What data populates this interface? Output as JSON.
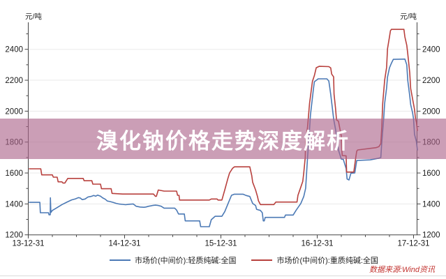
{
  "title_banner": {
    "text": "溴化钠价格走势深度解析",
    "bg_color": "rgba(171,99,137,0.62)",
    "text_color": "#ffffff"
  },
  "axes": {
    "left_unit": "元/吨",
    "right_unit": "元/吨"
  },
  "legend": [
    {
      "label": "市场价(中间价):轻质纯碱:全国",
      "color": "#4b79b5"
    },
    {
      "label": "市场价(中间价):重质纯碱:全国",
      "color": "#b8403d"
    }
  ],
  "watermark": {
    "text": "数据来源:Wind资讯",
    "color": "#c2332f"
  },
  "chart_data": {
    "type": "line",
    "unit": "元/吨",
    "grid": "horizontal",
    "legend_position": "bottom",
    "x_tick_labels": [
      "13-12-31",
      "14-12-31",
      "15-12-31",
      "16-12-31",
      "17-12-31"
    ],
    "x_tick_years": [
      2014,
      2015,
      2016,
      2017,
      2018
    ],
    "xlim": [
      2014.0,
      2018.05
    ],
    "y_ticks": [
      1200,
      1400,
      1600,
      1800,
      2000,
      2200,
      2400
    ],
    "y_minor_step": 100,
    "ylim": [
      1200,
      2580
    ],
    "highlight_band_values": [
      1690,
      1952
    ],
    "series": [
      {
        "name": "市场价(中间价):轻质纯碱:全国",
        "color": "#4b79b5",
        "points": [
          [
            2014.01,
            1410
          ],
          [
            2014.12,
            1410
          ],
          [
            2014.125,
            1343
          ],
          [
            2014.21,
            1343
          ],
          [
            2014.215,
            1330
          ],
          [
            2014.228,
            1330
          ],
          [
            2014.23,
            1440
          ],
          [
            2014.235,
            1345
          ],
          [
            2014.25,
            1358
          ],
          [
            2014.29,
            1373
          ],
          [
            2014.35,
            1396
          ],
          [
            2014.4,
            1411
          ],
          [
            2014.45,
            1426
          ],
          [
            2014.49,
            1433
          ],
          [
            2014.52,
            1441
          ],
          [
            2014.54,
            1438
          ],
          [
            2014.56,
            1428
          ],
          [
            2014.59,
            1432
          ],
          [
            2014.62,
            1445
          ],
          [
            2014.65,
            1448
          ],
          [
            2014.68,
            1455
          ],
          [
            2014.7,
            1450
          ],
          [
            2014.72,
            1457
          ],
          [
            2014.75,
            1450
          ],
          [
            2014.77,
            1440
          ],
          [
            2014.8,
            1430
          ],
          [
            2014.82,
            1419
          ],
          [
            2014.85,
            1415
          ],
          [
            2014.88,
            1410
          ],
          [
            2014.91,
            1404
          ],
          [
            2014.94,
            1400
          ],
          [
            2014.98,
            1397
          ],
          [
            2015.01,
            1395
          ],
          [
            2015.05,
            1398
          ],
          [
            2015.09,
            1400
          ],
          [
            2015.12,
            1385
          ],
          [
            2015.16,
            1380
          ],
          [
            2015.2,
            1378
          ],
          [
            2015.22,
            1380
          ],
          [
            2015.25,
            1385
          ],
          [
            2015.27,
            1387
          ],
          [
            2015.29,
            1390
          ],
          [
            2015.32,
            1392
          ],
          [
            2015.35,
            1390
          ],
          [
            2015.38,
            1385
          ],
          [
            2015.41,
            1373
          ],
          [
            2015.52,
            1373
          ],
          [
            2015.54,
            1360
          ],
          [
            2015.56,
            1335
          ],
          [
            2015.62,
            1335
          ],
          [
            2015.63,
            1290
          ],
          [
            2015.78,
            1290
          ],
          [
            2015.79,
            1253
          ],
          [
            2015.88,
            1253
          ],
          [
            2015.9,
            1298
          ],
          [
            2015.94,
            1320
          ],
          [
            2016.01,
            1320
          ],
          [
            2016.04,
            1350
          ],
          [
            2016.08,
            1410
          ],
          [
            2016.11,
            1456
          ],
          [
            2016.14,
            1463
          ],
          [
            2016.23,
            1463
          ],
          [
            2016.26,
            1455
          ],
          [
            2016.3,
            1448
          ],
          [
            2016.33,
            1403
          ],
          [
            2016.36,
            1390
          ],
          [
            2016.37,
            1365
          ],
          [
            2016.41,
            1358
          ],
          [
            2016.43,
            1343
          ],
          [
            2016.44,
            1290
          ],
          [
            2016.45,
            1290
          ],
          [
            2016.46,
            1313
          ],
          [
            2016.66,
            1313
          ],
          [
            2016.67,
            1328
          ],
          [
            2016.75,
            1328
          ],
          [
            2016.78,
            1358
          ],
          [
            2016.83,
            1403
          ],
          [
            2016.86,
            1448
          ],
          [
            2016.88,
            1501
          ],
          [
            2016.9,
            1704
          ],
          [
            2016.92,
            1884
          ],
          [
            2016.93,
            1975
          ],
          [
            2016.96,
            2141
          ],
          [
            2016.97,
            2190
          ],
          [
            2017.01,
            2209
          ],
          [
            2017.1,
            2209
          ],
          [
            2017.12,
            2195
          ],
          [
            2017.13,
            2155
          ],
          [
            2017.14,
            2110
          ],
          [
            2017.15,
            2057
          ],
          [
            2017.17,
            1950
          ],
          [
            2017.19,
            1884
          ],
          [
            2017.21,
            1800
          ],
          [
            2017.22,
            1749
          ],
          [
            2017.25,
            1690
          ],
          [
            2017.27,
            1689
          ],
          [
            2017.3,
            1629
          ],
          [
            2017.31,
            1561
          ],
          [
            2017.33,
            1555
          ],
          [
            2017.35,
            1599
          ],
          [
            2017.39,
            1600
          ],
          [
            2017.41,
            1681
          ],
          [
            2017.55,
            1685
          ],
          [
            2017.64,
            1696
          ],
          [
            2017.66,
            1700
          ],
          [
            2017.67,
            1800
          ],
          [
            2017.69,
            1950
          ],
          [
            2017.7,
            2050
          ],
          [
            2017.72,
            2150
          ],
          [
            2017.73,
            2220
          ],
          [
            2017.75,
            2280
          ],
          [
            2017.77,
            2310
          ],
          [
            2017.79,
            2335
          ],
          [
            2017.91,
            2337
          ],
          [
            2017.93,
            2300
          ],
          [
            2017.94,
            2200
          ],
          [
            2017.96,
            2100
          ],
          [
            2017.97,
            2042
          ],
          [
            2017.99,
            1990
          ],
          [
            2018.0,
            1950
          ],
          [
            2018.01,
            1850
          ],
          [
            2018.03,
            1803
          ],
          [
            2018.04,
            1749
          ]
        ]
      },
      {
        "name": "市场价(中间价):重质纯碱:全国",
        "color": "#b8403d",
        "points": [
          [
            2014.01,
            1627
          ],
          [
            2014.13,
            1627
          ],
          [
            2014.14,
            1588
          ],
          [
            2014.25,
            1588
          ],
          [
            2014.26,
            1573
          ],
          [
            2014.3,
            1573
          ],
          [
            2014.31,
            1543
          ],
          [
            2014.35,
            1543
          ],
          [
            2014.36,
            1535
          ],
          [
            2014.38,
            1535
          ],
          [
            2014.41,
            1565
          ],
          [
            2014.57,
            1565
          ],
          [
            2014.58,
            1550
          ],
          [
            2014.66,
            1550
          ],
          [
            2014.67,
            1528
          ],
          [
            2014.75,
            1528
          ],
          [
            2014.76,
            1498
          ],
          [
            2014.86,
            1498
          ],
          [
            2014.87,
            1468
          ],
          [
            2014.98,
            1464
          ],
          [
            2015.3,
            1464
          ],
          [
            2015.32,
            1449
          ],
          [
            2015.33,
            1449
          ],
          [
            2015.35,
            1490
          ],
          [
            2015.41,
            1483
          ],
          [
            2015.54,
            1483
          ],
          [
            2015.55,
            1456
          ],
          [
            2015.565,
            1456
          ],
          [
            2015.57,
            1425
          ],
          [
            2015.88,
            1425
          ],
          [
            2015.9,
            1432
          ],
          [
            2015.96,
            1432
          ],
          [
            2015.97,
            1425
          ],
          [
            2016.01,
            1425
          ],
          [
            2016.04,
            1490
          ],
          [
            2016.07,
            1560
          ],
          [
            2016.09,
            1600
          ],
          [
            2016.12,
            1630
          ],
          [
            2016.14,
            1640
          ],
          [
            2016.3,
            1640
          ],
          [
            2016.32,
            1583
          ],
          [
            2016.33,
            1540
          ],
          [
            2016.36,
            1490
          ],
          [
            2016.38,
            1448
          ],
          [
            2016.39,
            1420
          ],
          [
            2016.41,
            1396
          ],
          [
            2016.55,
            1396
          ],
          [
            2016.57,
            1412
          ],
          [
            2016.79,
            1412
          ],
          [
            2016.8,
            1456
          ],
          [
            2016.83,
            1509
          ],
          [
            2016.85,
            1546
          ],
          [
            2016.86,
            1600
          ],
          [
            2016.875,
            1700
          ],
          [
            2016.88,
            1800
          ],
          [
            2016.9,
            1900
          ],
          [
            2016.91,
            1975
          ],
          [
            2016.92,
            2050
          ],
          [
            2016.95,
            2192
          ],
          [
            2016.97,
            2230
          ],
          [
            2016.99,
            2281
          ],
          [
            2017.02,
            2290
          ],
          [
            2017.12,
            2288
          ],
          [
            2017.14,
            2280
          ],
          [
            2017.15,
            2240
          ],
          [
            2017.17,
            2222
          ],
          [
            2017.175,
            2110
          ],
          [
            2017.19,
            2020
          ],
          [
            2017.2,
            1944
          ],
          [
            2017.22,
            1935
          ],
          [
            2017.25,
            1839
          ],
          [
            2017.255,
            1749
          ],
          [
            2017.26,
            1713
          ],
          [
            2017.3,
            1711
          ],
          [
            2017.305,
            1606
          ],
          [
            2017.38,
            1606
          ],
          [
            2017.4,
            1700
          ],
          [
            2017.41,
            1741
          ],
          [
            2017.42,
            1749
          ],
          [
            2017.61,
            1764
          ],
          [
            2017.64,
            1770
          ],
          [
            2017.66,
            1790
          ],
          [
            2017.67,
            1900
          ],
          [
            2017.68,
            2050
          ],
          [
            2017.7,
            2200
          ],
          [
            2017.72,
            2283
          ],
          [
            2017.73,
            2403
          ],
          [
            2017.75,
            2480
          ],
          [
            2017.76,
            2520
          ],
          [
            2017.77,
            2529
          ],
          [
            2017.9,
            2529
          ],
          [
            2017.91,
            2480
          ],
          [
            2017.93,
            2426
          ],
          [
            2017.94,
            2372
          ],
          [
            2017.96,
            2250
          ],
          [
            2017.97,
            2146
          ],
          [
            2017.99,
            2080
          ],
          [
            2018.01,
            2011
          ],
          [
            2018.02,
            1952
          ],
          [
            2018.03,
            1929
          ],
          [
            2018.04,
            1875
          ]
        ]
      }
    ]
  }
}
